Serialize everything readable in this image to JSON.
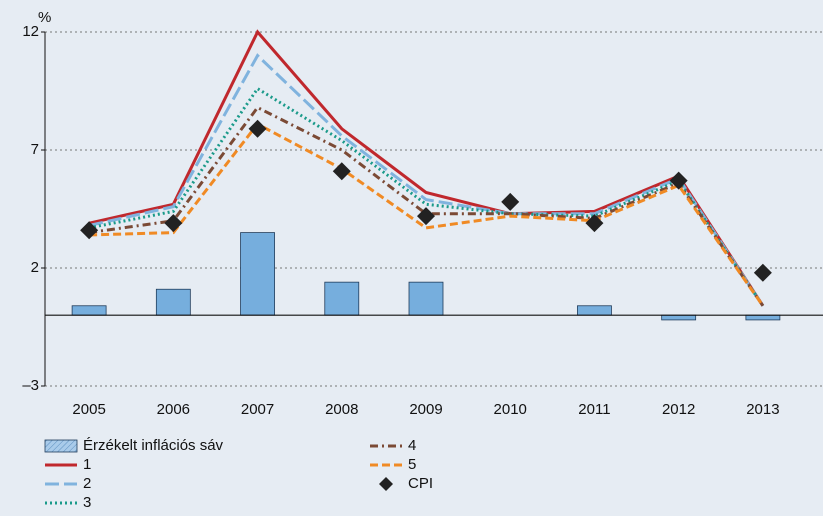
{
  "chart_data": {
    "type": "combo",
    "y_unit": "%",
    "categories": [
      "2005",
      "2006",
      "2007",
      "2008",
      "2009",
      "2010",
      "2011",
      "2012",
      "2013"
    ],
    "ylim": [
      -3,
      12
    ],
    "yticks": [
      {
        "value": -3,
        "label": "–3"
      },
      2,
      7,
      12
    ],
    "grid": true,
    "series": [
      {
        "name": "Érzékelt inflációs sáv",
        "type": "bar",
        "color": "#76aedd",
        "values": [
          0.4,
          1.1,
          3.5,
          1.4,
          1.4,
          0,
          0.4,
          -0.2,
          -0.2
        ]
      },
      {
        "name": "1",
        "type": "line",
        "dash": "solid",
        "color": "#c0282d",
        "values": [
          3.9,
          4.7,
          12.0,
          7.9,
          5.2,
          4.3,
          4.4,
          5.9,
          0.4
        ]
      },
      {
        "name": "2",
        "type": "line",
        "dash": "long-dash",
        "color": "#80b3de",
        "values": [
          3.8,
          4.6,
          11.0,
          7.6,
          4.9,
          4.3,
          4.3,
          5.8,
          0.4
        ]
      },
      {
        "name": "3",
        "type": "line",
        "dash": "dot",
        "color": "#1a9a8a",
        "values": [
          3.7,
          4.4,
          9.6,
          7.4,
          4.7,
          4.3,
          4.2,
          5.7,
          0.4
        ]
      },
      {
        "name": "4",
        "type": "line",
        "dash": "dash-dot",
        "color": "#7b4a35",
        "values": [
          3.5,
          4.0,
          8.8,
          7.0,
          4.3,
          4.3,
          4.1,
          5.6,
          0.4
        ]
      },
      {
        "name": "5",
        "type": "line",
        "dash": "dash",
        "color": "#f08a24",
        "values": [
          3.4,
          3.5,
          8.1,
          6.2,
          3.7,
          4.2,
          4.0,
          5.5,
          0.4
        ]
      },
      {
        "name": "CPI",
        "type": "scatter",
        "color": "#222222",
        "values": [
          3.6,
          3.9,
          7.9,
          6.1,
          4.2,
          4.8,
          3.9,
          5.7,
          1.8
        ]
      }
    ]
  }
}
